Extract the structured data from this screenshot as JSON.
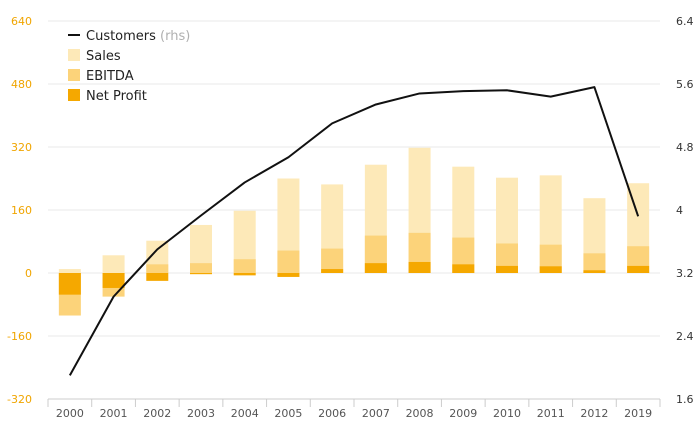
{
  "chart_data": {
    "type": "bar",
    "categories": [
      "2000",
      "2001",
      "2002",
      "2003",
      "2004",
      "2005",
      "2006",
      "2007",
      "2008",
      "2009",
      "2010",
      "2011",
      "2012",
      "2019"
    ],
    "y_left": {
      "ylim": [
        -320,
        640
      ],
      "ticks": [
        "640",
        "480",
        "320",
        "160",
        "0",
        "-160",
        "-320"
      ]
    },
    "y_right": {
      "ylim": [
        1.6,
        6.4
      ],
      "ticks": [
        "6.4",
        "5.6",
        "4.8",
        "4",
        "3.2",
        "2.4",
        "1.6"
      ]
    },
    "series": [
      {
        "name": "Sales",
        "kind": "bar",
        "axis": "left",
        "color": "#fde9b8",
        "values": [
          10,
          45,
          82,
          122,
          158,
          240,
          225,
          275,
          318,
          270,
          242,
          248,
          190,
          228
        ]
      },
      {
        "name": "EBITDA",
        "kind": "bar",
        "axis": "left",
        "color": "#fcd37a",
        "values": [
          -108,
          -60,
          22,
          25,
          35,
          57,
          62,
          95,
          102,
          90,
          75,
          72,
          50,
          68
        ]
      },
      {
        "name": "Net Profit",
        "kind": "bar",
        "axis": "left",
        "color": "#f5a800",
        "values": [
          -55,
          -38,
          -20,
          -3,
          -6,
          -10,
          10,
          25,
          28,
          22,
          18,
          17,
          7,
          18
        ]
      },
      {
        "name": "Customers",
        "kind": "line",
        "axis": "right",
        "color": "#111111",
        "values": [
          1.9,
          2.9,
          3.5,
          3.93,
          4.35,
          4.67,
          5.1,
          5.34,
          5.48,
          5.51,
          5.52,
          5.44,
          5.56,
          3.92
        ]
      }
    ],
    "legend": {
      "placement": "top-left",
      "items": [
        {
          "label": "Customers",
          "note": "(rhs)",
          "shape": "line",
          "color": "#111111"
        },
        {
          "label": "Sales",
          "shape": "box",
          "color": "#fde9b8"
        },
        {
          "label": "EBITDA",
          "shape": "box",
          "color": "#fcd37a"
        },
        {
          "label": "Net Profit",
          "shape": "box",
          "color": "#f5a800"
        }
      ]
    },
    "grid": true
  }
}
